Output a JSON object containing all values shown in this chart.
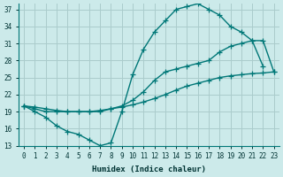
{
  "bg_color": "#cceaea",
  "grid_color": "#aacccc",
  "line_color": "#007777",
  "xlabel": "Humidex (Indice chaleur)",
  "xlim": [
    -0.5,
    23.5
  ],
  "ylim": [
    13,
    38
  ],
  "yticks": [
    13,
    16,
    19,
    22,
    25,
    28,
    31,
    34,
    37
  ],
  "xticks": [
    0,
    1,
    2,
    3,
    4,
    5,
    6,
    7,
    8,
    9,
    10,
    11,
    12,
    13,
    14,
    15,
    16,
    17,
    18,
    19,
    20,
    21,
    22,
    23
  ],
  "line1_x": [
    0,
    1,
    2,
    3,
    4,
    5,
    6,
    7,
    8,
    9,
    10,
    11,
    12,
    13,
    14,
    15,
    16,
    17,
    18,
    19,
    20,
    21,
    22
  ],
  "line1_y": [
    20,
    19,
    18,
    16.5,
    15.5,
    15,
    14,
    13,
    13.5,
    19,
    25.5,
    30,
    33,
    35,
    37,
    37.5,
    38,
    37,
    36,
    34,
    33,
    31.5,
    27
  ],
  "line2_x": [
    0,
    1,
    2,
    3,
    4,
    5,
    6,
    7,
    8,
    9,
    10,
    11,
    12,
    13,
    14,
    15,
    16,
    17,
    18,
    19,
    20,
    21,
    22,
    23
  ],
  "line2_y": [
    20,
    19.5,
    19,
    19,
    19,
    19,
    19,
    19,
    19.5,
    20,
    21,
    22.5,
    24.5,
    26,
    26.5,
    27,
    27.5,
    28,
    29.5,
    30.5,
    31,
    31.5,
    31.5,
    26
  ],
  "line3_x": [
    0,
    1,
    2,
    3,
    4,
    5,
    6,
    7,
    8,
    9,
    10,
    11,
    12,
    13,
    14,
    15,
    16,
    17,
    18,
    19,
    20,
    21,
    22,
    23
  ],
  "line3_y": [
    20,
    19.8,
    19.5,
    19.2,
    19.0,
    19.0,
    19.0,
    19.2,
    19.5,
    19.8,
    20.2,
    20.7,
    21.3,
    22.0,
    22.8,
    23.5,
    24.0,
    24.5,
    25.0,
    25.3,
    25.5,
    25.7,
    25.8,
    26.0
  ]
}
